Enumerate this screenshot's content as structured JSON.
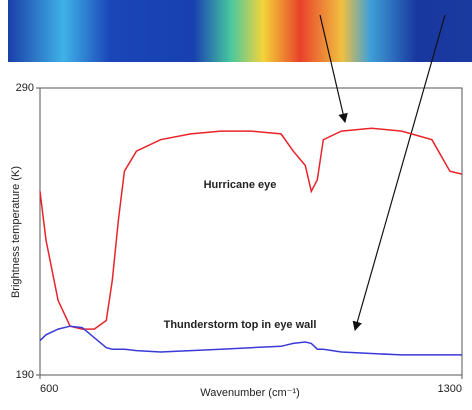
{
  "chart_data": {
    "type": "line",
    "xlabel": "Wavenumber (cm⁻¹)",
    "ylabel": "Brightness temperature (K)",
    "annotations": [
      "Hurricane eye",
      "Thunderstorm top in eye wall"
    ],
    "x": [
      600,
      610,
      630,
      650,
      670,
      690,
      710,
      720,
      730,
      740,
      760,
      800,
      850,
      900,
      950,
      1000,
      1020,
      1040,
      1050,
      1060,
      1070,
      1100,
      1150,
      1200,
      1250,
      1280,
      1300
    ],
    "series": [
      {
        "name": "Hurricane eye",
        "color": "#e8232a",
        "values": [
          254,
          237,
          216,
          207,
          206,
          206,
          209,
          223,
          244,
          261,
          268,
          272,
          274,
          275,
          275,
          274,
          268,
          263,
          254,
          258,
          272,
          275,
          276,
          275,
          272,
          261,
          260
        ]
      },
      {
        "name": "Thunderstorm top in eye wall",
        "color": "#3a3ad8",
        "values": [
          202,
          204,
          206,
          207,
          206.5,
          203,
          199.5,
          199,
          199,
          199,
          198.5,
          198,
          198.5,
          199,
          199.5,
          200,
          201,
          201.5,
          201,
          199,
          199,
          198,
          197.5,
          197,
          197,
          197,
          197
        ]
      }
    ],
    "xlim": [
      600,
      1300
    ],
    "xticks": [
      600,
      1300
    ],
    "ylim": [
      190,
      290
    ],
    "yticks": [
      190,
      290
    ]
  }
}
